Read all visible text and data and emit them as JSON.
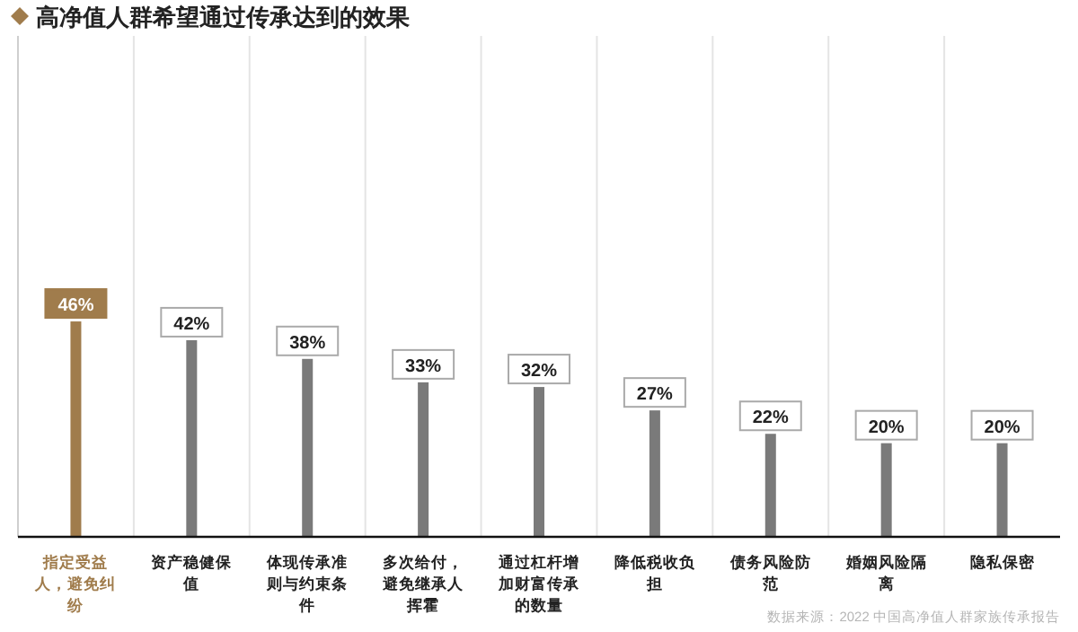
{
  "chart_data": {
    "type": "bar",
    "title": "高净值人群希望通过传承达到的效果",
    "categories": [
      "指定受益人，避免纠纷",
      "资产稳健保值",
      "体现传承准则与约束条件",
      "多次给付，避免继承人挥霍",
      "通过杠杆增加财富传承的数量",
      "降低税收负担",
      "债务风险防范",
      "婚姻风险隔离",
      "隐私保密"
    ],
    "values": [
      46,
      42,
      38,
      33,
      32,
      27,
      22,
      20,
      20
    ],
    "value_labels": [
      "46%",
      "42%",
      "38%",
      "33%",
      "32%",
      "27%",
      "22%",
      "20%",
      "20%"
    ],
    "colors": [
      "#a07c4c",
      "#7a7a7a",
      "#7a7a7a",
      "#7a7a7a",
      "#7a7a7a",
      "#7a7a7a",
      "#7a7a7a",
      "#7a7a7a",
      "#7a7a7a"
    ],
    "tick_labels": "x",
    "annotations": [
      "数据来源：2022 中国高净值人群家族传承报告"
    ]
  }
}
